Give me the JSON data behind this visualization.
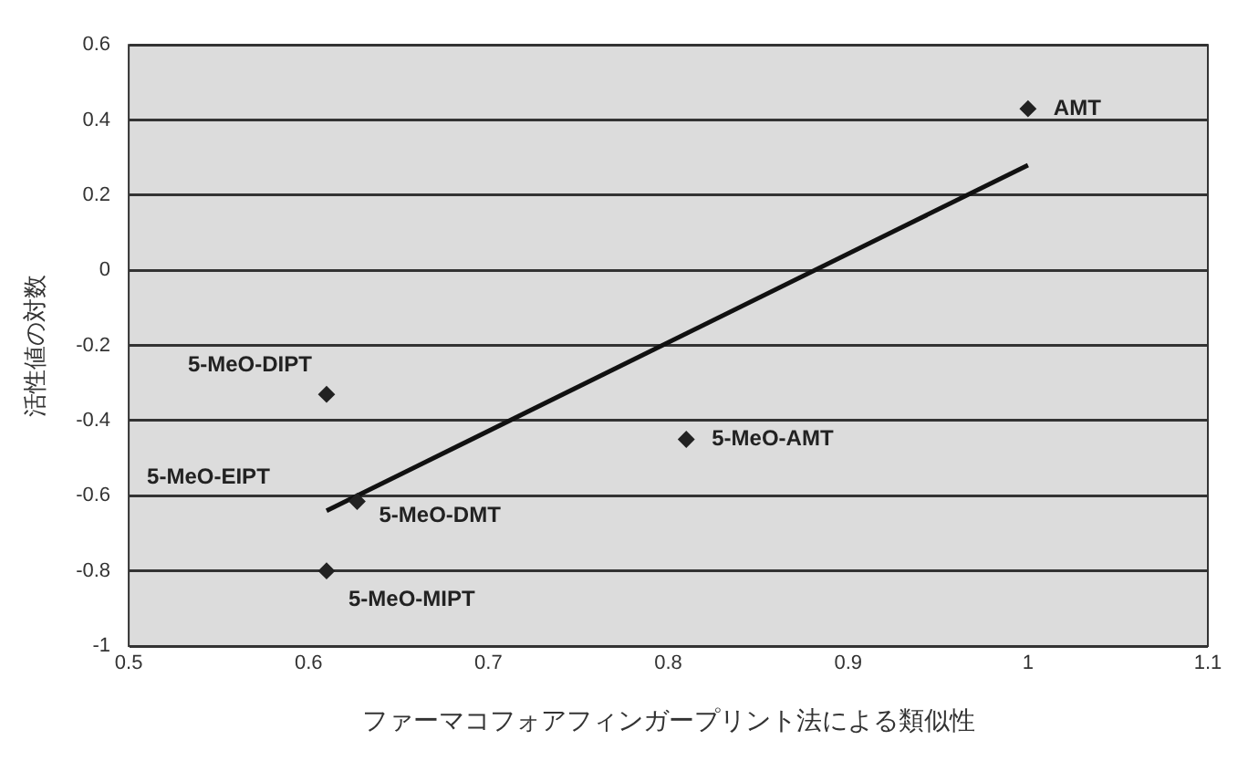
{
  "chart_data": {
    "type": "scatter",
    "xlabel": "ファーマコフォアフィンガープリント法による類似性",
    "ylabel": "活性値の対数",
    "xlim": [
      0.5,
      1.1
    ],
    "xticks": [
      0.5,
      0.6,
      0.7,
      0.8,
      0.9,
      1,
      1.1
    ],
    "ylim": [
      -1,
      0.6
    ],
    "yticks": [
      -1,
      -0.8,
      -0.6,
      -0.4,
      -0.2,
      0,
      0.2,
      0.4,
      0.6
    ],
    "grid": "y",
    "legend": false,
    "series": [
      {
        "color": "#222222",
        "marker": "diamond",
        "x": [
          1.0,
          0.61,
          0.81,
          0.627,
          0.61
        ],
        "values": [
          0.43,
          -0.33,
          -0.45,
          -0.615,
          -0.8
        ]
      },
      {
        "type": "line",
        "color": "#111111",
        "x": [
          0.61,
          1.0
        ],
        "values": [
          -0.64,
          0.28
        ]
      }
    ],
    "annotations": [
      {
        "text": "AMT",
        "x": 1.0,
        "y": 0.43
      },
      {
        "text": "5-MeO-DIPT",
        "x": 0.61,
        "y": -0.33
      },
      {
        "text": "5-MeO-AMT",
        "x": 0.81,
        "y": -0.45
      },
      "5-MeO-EIPT",
      {
        "text": "5-MeO-DMT",
        "x": 0.627,
        "y": -0.615
      },
      {
        "text": "5-MeO-MIPT",
        "x": 0.61,
        "y": -0.8
      }
    ]
  }
}
